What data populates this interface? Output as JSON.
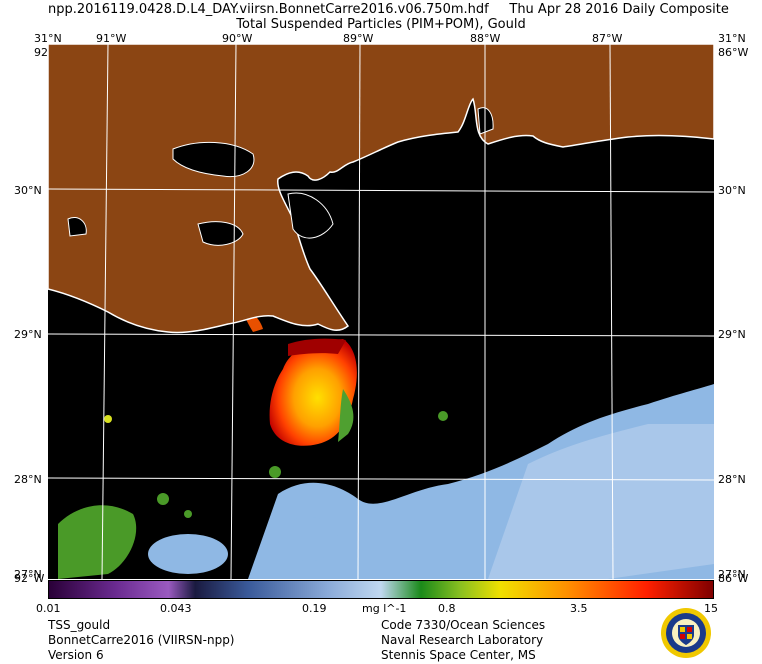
{
  "header": {
    "line1": "npp.2016119.0428.D.L4_DAY.viirsn.BonnetCarre2016.v06.750m.hdf     Thu Apr 28 2016 Daily Composite",
    "line2": "Total Suspended Particles (PIM+POM), Gould"
  },
  "axes": {
    "lon_top": [
      "91°W",
      "90°W",
      "89°W",
      "88°W",
      "87°W"
    ],
    "lat": [
      "30°N",
      "29°N",
      "28°N"
    ],
    "corner_top_left": "31°N",
    "corner_top_left2": "92°W",
    "corner_top_right": "31°N",
    "corner_top_right2": "86°W",
    "corner_bottom_left": "27°N",
    "corner_bottom_left2": "92°W",
    "corner_bottom_right": "27°N",
    "corner_bottom_right2": "86°W"
  },
  "colorbar": {
    "ticks": [
      "0.01",
      "0.043",
      "0.19",
      "0.8",
      "3.5",
      "15"
    ],
    "units": "mg l^-1"
  },
  "footer": {
    "left": [
      "TSS_gould",
      "BonnetCarre2016 (VIIRSN-npp)",
      "Version 6"
    ],
    "right": [
      "Code 7330/Ocean Sciences",
      "Naval Research Laboratory",
      "Stennis Space Center, MS"
    ]
  },
  "colors": {
    "land": "#8B4513",
    "ocean": "#000000",
    "coast": "#ffffff",
    "grid": "#ffffff",
    "plume_high": "#d00000",
    "plume_mid": "#ffcc00",
    "clear_low": "#8ab4e0",
    "shelf_green": "#3a9a20"
  }
}
